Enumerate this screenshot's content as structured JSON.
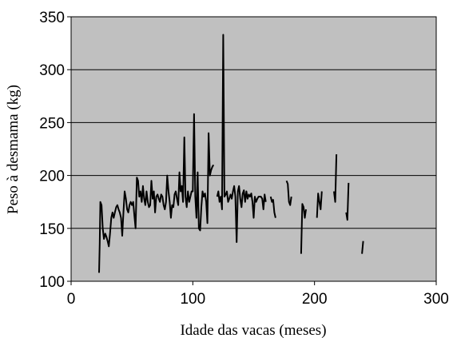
{
  "chart_data": {
    "type": "line",
    "title": "",
    "xlabel": "Idade das vacas (meses)",
    "ylabel": "Peso à desmama (kg)",
    "xlim": [
      0,
      300
    ],
    "ylim": [
      100,
      350
    ],
    "xticks": [
      0,
      100,
      200,
      300
    ],
    "yticks": [
      100,
      150,
      200,
      250,
      300,
      350
    ],
    "xtick_labels": [
      "0",
      "100",
      "200",
      "300"
    ],
    "ytick_labels": [
      "100",
      "150",
      "200",
      "250",
      "300",
      "350"
    ],
    "grid": "horizontal",
    "plot_background": "#c0c0c0",
    "line_color": "#000000",
    "legend": "none",
    "series": [
      {
        "segments": [
          [
            [
              23,
              108
            ],
            [
              23.5,
              135
            ],
            [
              24,
              175
            ],
            [
              25,
              172
            ],
            [
              26,
              150
            ],
            [
              27,
              140
            ],
            [
              28,
              145
            ],
            [
              29,
              142
            ],
            [
              30,
              138
            ],
            [
              31,
              133
            ],
            [
              32,
              145
            ],
            [
              33,
              160
            ],
            [
              34,
              165
            ],
            [
              35,
              160
            ],
            [
              36,
              165
            ],
            [
              37,
              170
            ],
            [
              38,
              172
            ],
            [
              39,
              168
            ],
            [
              40,
              165
            ],
            [
              41,
              160
            ],
            [
              42,
              143
            ],
            [
              43,
              165
            ],
            [
              44,
              185
            ],
            [
              45,
              178
            ],
            [
              46,
              168
            ],
            [
              47,
              165
            ],
            [
              48,
              172
            ],
            [
              49,
              175
            ],
            [
              50,
              172
            ],
            [
              51,
              175
            ],
            [
              52,
              162
            ],
            [
              53,
              150
            ],
            [
              54,
              198
            ],
            [
              55,
              195
            ],
            [
              56,
              180
            ],
            [
              57,
              185
            ],
            [
              58,
              175
            ],
            [
              59,
              190
            ],
            [
              60,
              178
            ],
            [
              61,
              172
            ],
            [
              62,
              185
            ],
            [
              63,
              175
            ],
            [
              64,
              170
            ],
            [
              65,
              172
            ],
            [
              66,
              195
            ],
            [
              67,
              178
            ],
            [
              68,
              185
            ],
            [
              69,
              165
            ],
            [
              70,
              180
            ],
            [
              71,
              182
            ],
            [
              72,
              178
            ],
            [
              73,
              175
            ],
            [
              74,
              182
            ],
            [
              75,
              180
            ],
            [
              76,
              172
            ],
            [
              77,
              168
            ],
            [
              78,
              175
            ],
            [
              79,
              200
            ],
            [
              80,
              185
            ],
            [
              81,
              175
            ],
            [
              82,
              160
            ],
            [
              83,
              172
            ],
            [
              84,
              170
            ],
            [
              85,
              182
            ],
            [
              86,
              185
            ],
            [
              87,
              178
            ],
            [
              88,
              172
            ],
            [
              89,
              203
            ],
            [
              90,
              185
            ],
            [
              91,
              190
            ],
            [
              92,
              175
            ],
            [
              93,
              236
            ],
            [
              94,
              180
            ],
            [
              95,
              170
            ],
            [
              96,
              185
            ],
            [
              97,
              175
            ],
            [
              98,
              180
            ],
            [
              99,
              185
            ],
            [
              100,
              185
            ],
            [
              101,
              258
            ],
            [
              102,
              180
            ],
            [
              103,
              160
            ],
            [
              104,
              203
            ],
            [
              105,
              150
            ],
            [
              106,
              148
            ],
            [
              107,
              170
            ],
            [
              108,
              185
            ],
            [
              109,
              180
            ],
            [
              110,
              183
            ],
            [
              111,
              175
            ],
            [
              112,
              155
            ],
            [
              113,
              240
            ],
            [
              114,
              200
            ],
            [
              115,
              205
            ],
            [
              116,
              208
            ],
            [
              117,
              210
            ]
          ],
          [
            [
              120,
              180
            ],
            [
              121,
              185
            ],
            [
              122,
              175
            ],
            [
              123,
              180
            ],
            [
              124,
              168
            ],
            [
              125,
              333
            ],
            [
              126,
              180
            ],
            [
              127,
              182
            ],
            [
              128,
              185
            ],
            [
              129,
              175
            ],
            [
              130,
              178
            ],
            [
              131,
              182
            ],
            [
              132,
              178
            ],
            [
              133,
              185
            ],
            [
              134,
              190
            ],
            [
              135,
              180
            ],
            [
              136,
              137
            ],
            [
              137,
              185
            ],
            [
              138,
              190
            ],
            [
              139,
              178
            ],
            [
              140,
              170
            ],
            [
              141,
              183
            ],
            [
              142,
              186
            ],
            [
              143,
              175
            ],
            [
              144,
              185
            ],
            [
              145,
              178
            ],
            [
              146,
              182
            ],
            [
              147,
              180
            ],
            [
              148,
              183
            ],
            [
              149,
              175
            ],
            [
              150,
              160
            ],
            [
              151,
              180
            ],
            [
              152,
              175
            ],
            [
              153,
              178
            ],
            [
              154,
              180
            ],
            [
              155,
              180
            ],
            [
              156,
              180
            ],
            [
              157,
              178
            ],
            [
              158,
              168
            ],
            [
              159,
              182
            ],
            [
              160,
              175
            ]
          ],
          [
            [
              164,
              180
            ],
            [
              165,
              175
            ],
            [
              166,
              177
            ],
            [
              167,
              165
            ],
            [
              168,
              160
            ]
          ],
          [
            [
              177,
              195
            ],
            [
              178,
              192
            ],
            [
              179,
              175
            ],
            [
              180,
              172
            ],
            [
              181,
              180
            ]
          ],
          [
            [
              189,
              126
            ],
            [
              190,
              173
            ],
            [
              191,
              170
            ],
            [
              192,
              160
            ],
            [
              193,
              168
            ]
          ],
          [
            [
              202,
              160
            ],
            [
              203,
              183
            ],
            [
              204,
              175
            ],
            [
              205,
              168
            ],
            [
              206,
              185
            ]
          ],
          [
            [
              216,
              185
            ],
            [
              217,
              175
            ],
            [
              218,
              220
            ]
          ],
          [
            [
              226,
              165
            ],
            [
              227,
              158
            ],
            [
              228,
              193
            ]
          ],
          [
            [
              239,
              126
            ],
            [
              240,
              138
            ]
          ]
        ]
      }
    ]
  }
}
